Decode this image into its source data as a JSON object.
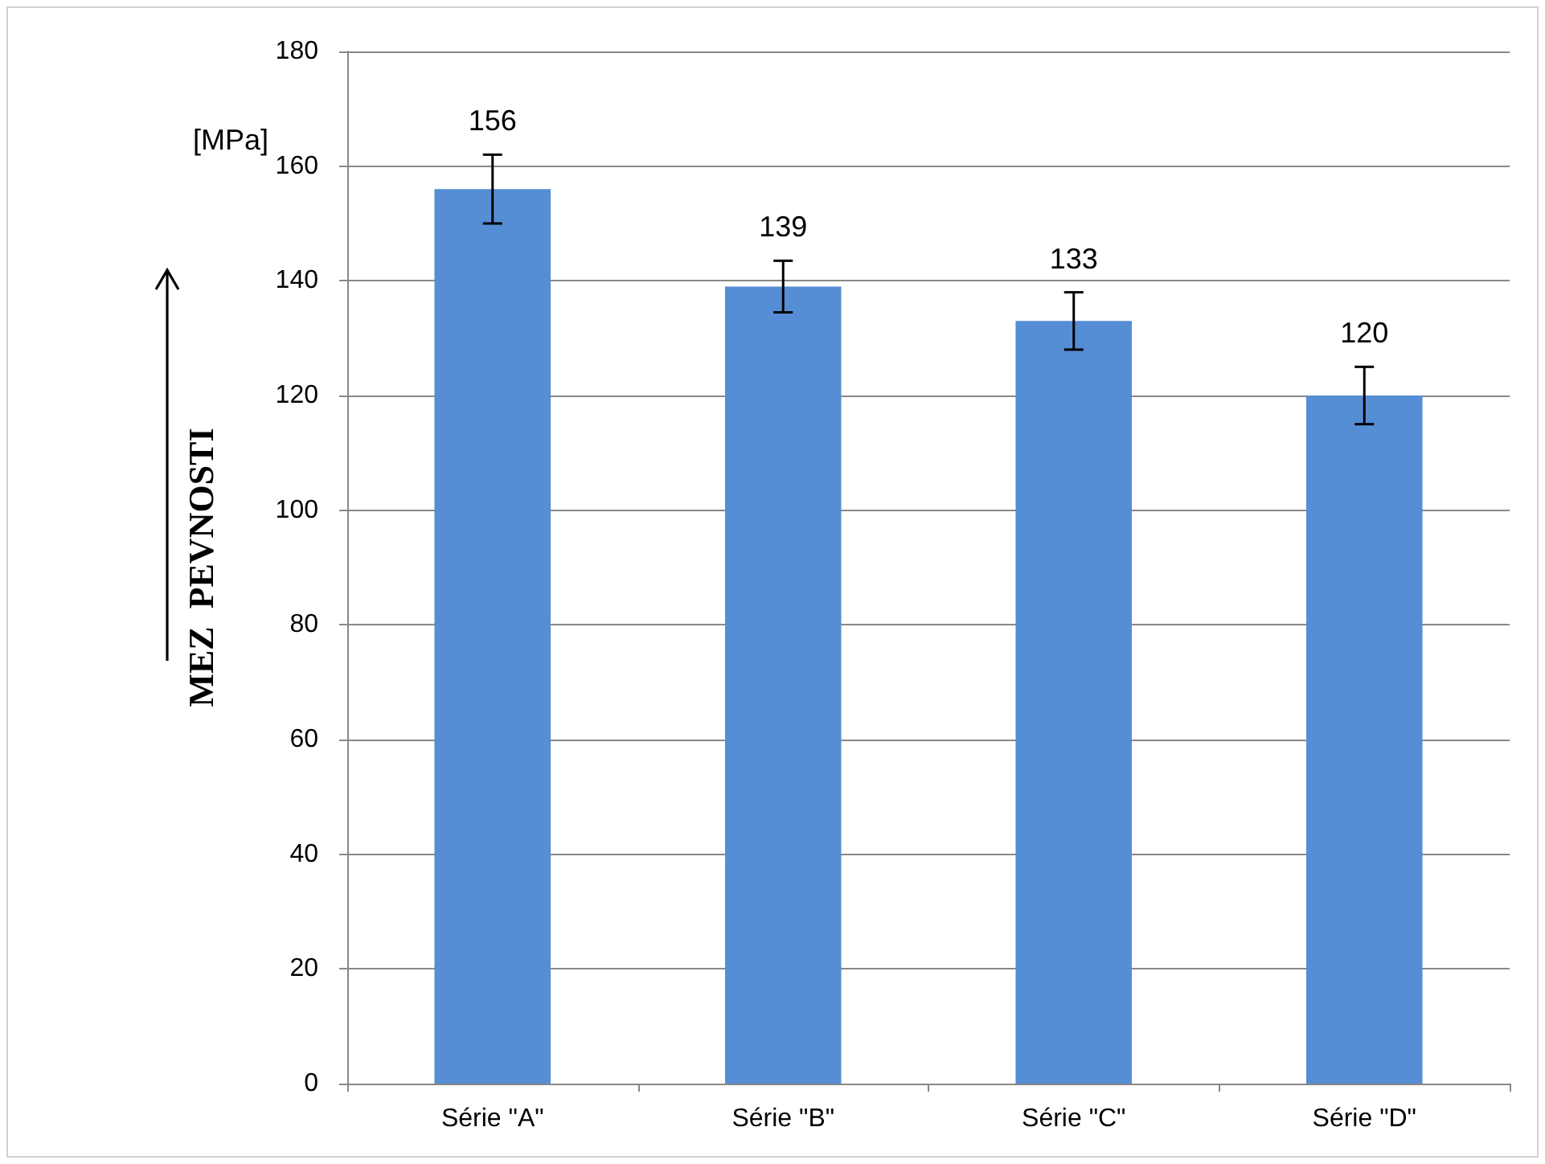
{
  "chart_data": {
    "type": "bar",
    "categories": [
      "Série \"A\"",
      "Série \"B\"",
      "Série \"C\"",
      "Série \"D\""
    ],
    "values": [
      156,
      139,
      133,
      120
    ],
    "errors": [
      6,
      4.5,
      5,
      5
    ],
    "color": "#558ed5",
    "ylabel": "MEZ  PEVNOSTI",
    "annotations": [
      "[MPa]"
    ],
    "ylim": [
      0,
      180
    ],
    "yticks": [
      0,
      20,
      40,
      60,
      80,
      100,
      120,
      140,
      160,
      180
    ],
    "grid": "y",
    "data_labels": true
  }
}
